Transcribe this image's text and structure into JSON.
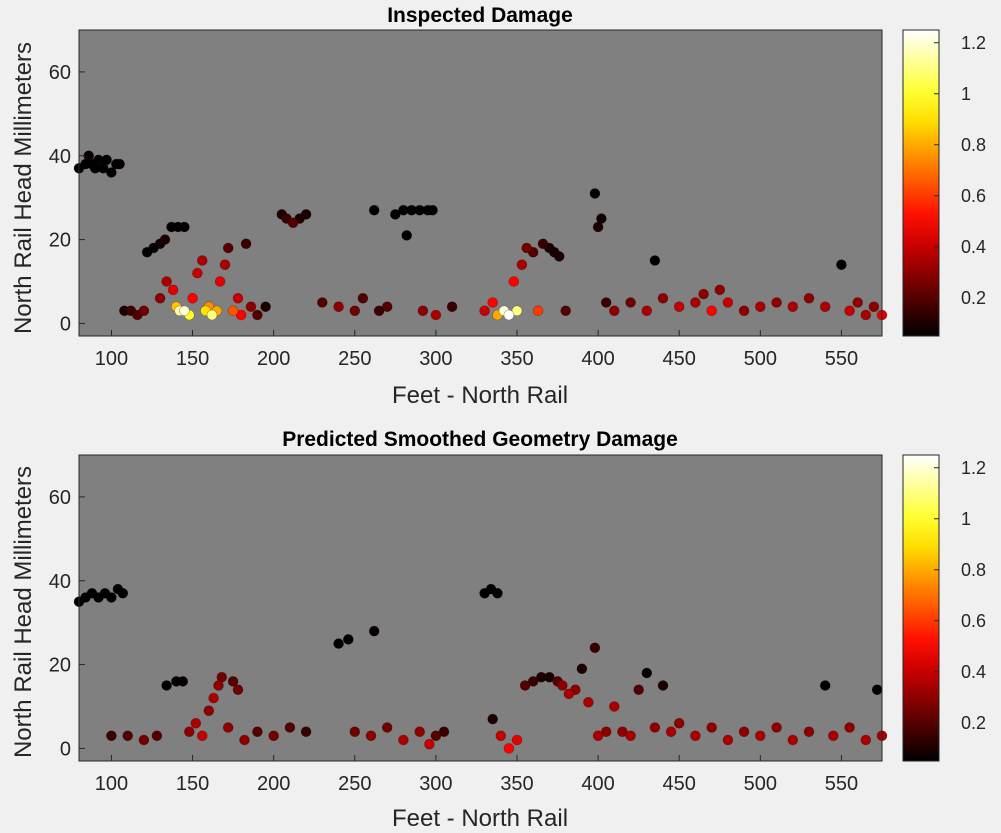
{
  "chart_data": [
    {
      "type": "scatter",
      "title": "Inspected Damage",
      "xlabel": "Feet - North Rail",
      "ylabel": "North Rail Head Millimeters",
      "xlim": [
        80,
        575
      ],
      "ylim": [
        -3,
        70
      ],
      "xticks": [
        100,
        150,
        200,
        250,
        300,
        350,
        400,
        450,
        500,
        550
      ],
      "yticks": [
        0,
        20,
        40,
        60
      ],
      "background": "#808080",
      "colormap": "hot",
      "colorbar": {
        "ticks": [
          0.2,
          0.4,
          0.6,
          0.8,
          1,
          1.2
        ],
        "range": [
          0.05,
          1.25
        ]
      },
      "series": [
        {
          "points": [
            [
              80,
              37,
              0.05
            ],
            [
              84,
              38,
              0.05
            ],
            [
              86,
              40,
              0.06
            ],
            [
              88,
              38,
              0.05
            ],
            [
              90,
              37,
              0.05
            ],
            [
              92,
              39,
              0.06
            ],
            [
              95,
              37,
              0.05
            ],
            [
              97,
              39,
              0.05
            ],
            [
              100,
              36,
              0.05
            ],
            [
              103,
              38,
              0.06
            ],
            [
              105,
              38,
              0.05
            ],
            [
              108,
              3,
              0.1
            ],
            [
              112,
              3,
              0.15
            ],
            [
              116,
              2,
              0.2
            ],
            [
              120,
              3,
              0.25
            ],
            [
              122,
              17,
              0.05
            ],
            [
              126,
              18,
              0.06
            ],
            [
              130,
              19,
              0.08
            ],
            [
              133,
              20,
              0.1
            ],
            [
              137,
              23,
              0.05
            ],
            [
              141,
              23,
              0.05
            ],
            [
              145,
              23,
              0.06
            ],
            [
              130,
              6,
              0.3
            ],
            [
              134,
              10,
              0.35
            ],
            [
              138,
              8,
              0.45
            ],
            [
              140,
              4,
              0.85
            ],
            [
              142,
              3,
              1.15
            ],
            [
              145,
              3,
              1.2
            ],
            [
              148,
              2,
              1.0
            ],
            [
              150,
              6,
              0.5
            ],
            [
              153,
              12,
              0.4
            ],
            [
              156,
              15,
              0.35
            ],
            [
              158,
              3,
              0.9
            ],
            [
              160,
              4,
              0.75
            ],
            [
              162,
              2,
              1.1
            ],
            [
              165,
              3,
              0.8
            ],
            [
              167,
              10,
              0.45
            ],
            [
              170,
              14,
              0.35
            ],
            [
              172,
              18,
              0.2
            ],
            [
              175,
              3,
              0.65
            ],
            [
              178,
              6,
              0.4
            ],
            [
              180,
              2,
              0.5
            ],
            [
              183,
              19,
              0.15
            ],
            [
              186,
              4,
              0.3
            ],
            [
              190,
              2,
              0.2
            ],
            [
              195,
              4,
              0.1
            ],
            [
              205,
              26,
              0.1
            ],
            [
              208,
              25,
              0.15
            ],
            [
              212,
              24,
              0.2
            ],
            [
              216,
              25,
              0.1
            ],
            [
              220,
              26,
              0.1
            ],
            [
              230,
              5,
              0.2
            ],
            [
              240,
              4,
              0.3
            ],
            [
              250,
              3,
              0.25
            ],
            [
              255,
              6,
              0.2
            ],
            [
              262,
              27,
              0.05
            ],
            [
              265,
              3,
              0.15
            ],
            [
              270,
              4,
              0.2
            ],
            [
              275,
              26,
              0.05
            ],
            [
              280,
              27,
              0.05
            ],
            [
              282,
              21,
              0.05
            ],
            [
              285,
              27,
              0.05
            ],
            [
              290,
              27,
              0.05
            ],
            [
              295,
              27,
              0.06
            ],
            [
              298,
              27,
              0.05
            ],
            [
              292,
              3,
              0.3
            ],
            [
              300,
              2,
              0.35
            ],
            [
              310,
              4,
              0.15
            ],
            [
              330,
              3,
              0.4
            ],
            [
              335,
              5,
              0.5
            ],
            [
              338,
              2,
              0.8
            ],
            [
              342,
              3,
              1.2
            ],
            [
              345,
              2,
              1.25
            ],
            [
              348,
              10,
              0.5
            ],
            [
              350,
              3,
              1.1
            ],
            [
              353,
              14,
              0.35
            ],
            [
              356,
              18,
              0.25
            ],
            [
              360,
              17,
              0.2
            ],
            [
              363,
              3,
              0.6
            ],
            [
              366,
              19,
              0.15
            ],
            [
              370,
              18,
              0.1
            ],
            [
              373,
              17,
              0.08
            ],
            [
              376,
              16,
              0.1
            ],
            [
              380,
              3,
              0.2
            ],
            [
              398,
              31,
              0.06
            ],
            [
              400,
              23,
              0.1
            ],
            [
              402,
              25,
              0.08
            ],
            [
              405,
              5,
              0.15
            ],
            [
              410,
              3,
              0.3
            ],
            [
              420,
              5,
              0.25
            ],
            [
              430,
              3,
              0.35
            ],
            [
              435,
              15,
              0.05
            ],
            [
              440,
              6,
              0.3
            ],
            [
              450,
              4,
              0.4
            ],
            [
              460,
              5,
              0.35
            ],
            [
              465,
              7,
              0.3
            ],
            [
              470,
              3,
              0.5
            ],
            [
              475,
              8,
              0.3
            ],
            [
              480,
              5,
              0.4
            ],
            [
              490,
              3,
              0.3
            ],
            [
              500,
              4,
              0.35
            ],
            [
              510,
              5,
              0.3
            ],
            [
              520,
              4,
              0.35
            ],
            [
              530,
              6,
              0.3
            ],
            [
              540,
              4,
              0.35
            ],
            [
              550,
              14,
              0.05
            ],
            [
              555,
              3,
              0.4
            ],
            [
              560,
              5,
              0.3
            ],
            [
              565,
              2,
              0.35
            ],
            [
              570,
              4,
              0.3
            ],
            [
              575,
              2,
              0.45
            ]
          ]
        }
      ]
    },
    {
      "type": "scatter",
      "title": "Predicted Smoothed Geometry Damage",
      "xlabel": "Feet - North Rail",
      "ylabel": "North Rail Head Millimeters",
      "xlim": [
        80,
        575
      ],
      "ylim": [
        -3,
        70
      ],
      "xticks": [
        100,
        150,
        200,
        250,
        300,
        350,
        400,
        450,
        500,
        550
      ],
      "yticks": [
        0,
        20,
        40,
        60
      ],
      "background": "#808080",
      "colormap": "hot",
      "colorbar": {
        "ticks": [
          0.2,
          0.4,
          0.6,
          0.8,
          1,
          1.2
        ],
        "range": [
          0.05,
          1.25
        ]
      },
      "series": [
        {
          "points": [
            [
              80,
              35,
              0.05
            ],
            [
              84,
              36,
              0.05
            ],
            [
              88,
              37,
              0.06
            ],
            [
              92,
              36,
              0.05
            ],
            [
              96,
              37,
              0.05
            ],
            [
              100,
              36,
              0.05
            ],
            [
              104,
              38,
              0.05
            ],
            [
              107,
              37,
              0.06
            ],
            [
              100,
              3,
              0.15
            ],
            [
              110,
              3,
              0.2
            ],
            [
              120,
              2,
              0.25
            ],
            [
              128,
              3,
              0.2
            ],
            [
              134,
              15,
              0.05
            ],
            [
              140,
              16,
              0.05
            ],
            [
              144,
              16,
              0.06
            ],
            [
              148,
              4,
              0.3
            ],
            [
              152,
              6,
              0.35
            ],
            [
              156,
              3,
              0.4
            ],
            [
              160,
              9,
              0.3
            ],
            [
              163,
              12,
              0.35
            ],
            [
              166,
              15,
              0.3
            ],
            [
              168,
              17,
              0.25
            ],
            [
              172,
              5,
              0.3
            ],
            [
              175,
              16,
              0.2
            ],
            [
              178,
              14,
              0.25
            ],
            [
              182,
              2,
              0.3
            ],
            [
              190,
              4,
              0.2
            ],
            [
              200,
              3,
              0.25
            ],
            [
              210,
              5,
              0.2
            ],
            [
              220,
              4,
              0.15
            ],
            [
              240,
              25,
              0.05
            ],
            [
              246,
              26,
              0.05
            ],
            [
              262,
              28,
              0.06
            ],
            [
              250,
              4,
              0.25
            ],
            [
              260,
              3,
              0.3
            ],
            [
              270,
              5,
              0.25
            ],
            [
              280,
              2,
              0.35
            ],
            [
              290,
              4,
              0.3
            ],
            [
              296,
              1,
              0.4
            ],
            [
              300,
              3,
              0.2
            ],
            [
              305,
              4,
              0.15
            ],
            [
              330,
              37,
              0.05
            ],
            [
              334,
              38,
              0.05
            ],
            [
              338,
              37,
              0.06
            ],
            [
              335,
              7,
              0.1
            ],
            [
              340,
              3,
              0.4
            ],
            [
              345,
              0,
              0.5
            ],
            [
              350,
              2,
              0.45
            ],
            [
              355,
              15,
              0.2
            ],
            [
              360,
              16,
              0.15
            ],
            [
              365,
              17,
              0.1
            ],
            [
              370,
              17,
              0.1
            ],
            [
              375,
              16,
              0.2
            ],
            [
              378,
              15,
              0.3
            ],
            [
              382,
              13,
              0.35
            ],
            [
              386,
              14,
              0.3
            ],
            [
              390,
              19,
              0.1
            ],
            [
              394,
              11,
              0.35
            ],
            [
              398,
              24,
              0.15
            ],
            [
              400,
              3,
              0.35
            ],
            [
              405,
              4,
              0.3
            ],
            [
              410,
              10,
              0.35
            ],
            [
              415,
              4,
              0.3
            ],
            [
              420,
              3,
              0.35
            ],
            [
              425,
              14,
              0.2
            ],
            [
              430,
              18,
              0.05
            ],
            [
              435,
              5,
              0.3
            ],
            [
              440,
              15,
              0.1
            ],
            [
              445,
              4,
              0.35
            ],
            [
              450,
              6,
              0.3
            ],
            [
              460,
              3,
              0.35
            ],
            [
              470,
              5,
              0.3
            ],
            [
              480,
              2,
              0.35
            ],
            [
              490,
              4,
              0.3
            ],
            [
              500,
              3,
              0.35
            ],
            [
              510,
              5,
              0.3
            ],
            [
              520,
              2,
              0.35
            ],
            [
              530,
              4,
              0.3
            ],
            [
              540,
              15,
              0.05
            ],
            [
              545,
              3,
              0.35
            ],
            [
              555,
              5,
              0.3
            ],
            [
              565,
              2,
              0.35
            ],
            [
              572,
              14,
              0.05
            ],
            [
              575,
              3,
              0.35
            ]
          ]
        }
      ]
    }
  ]
}
